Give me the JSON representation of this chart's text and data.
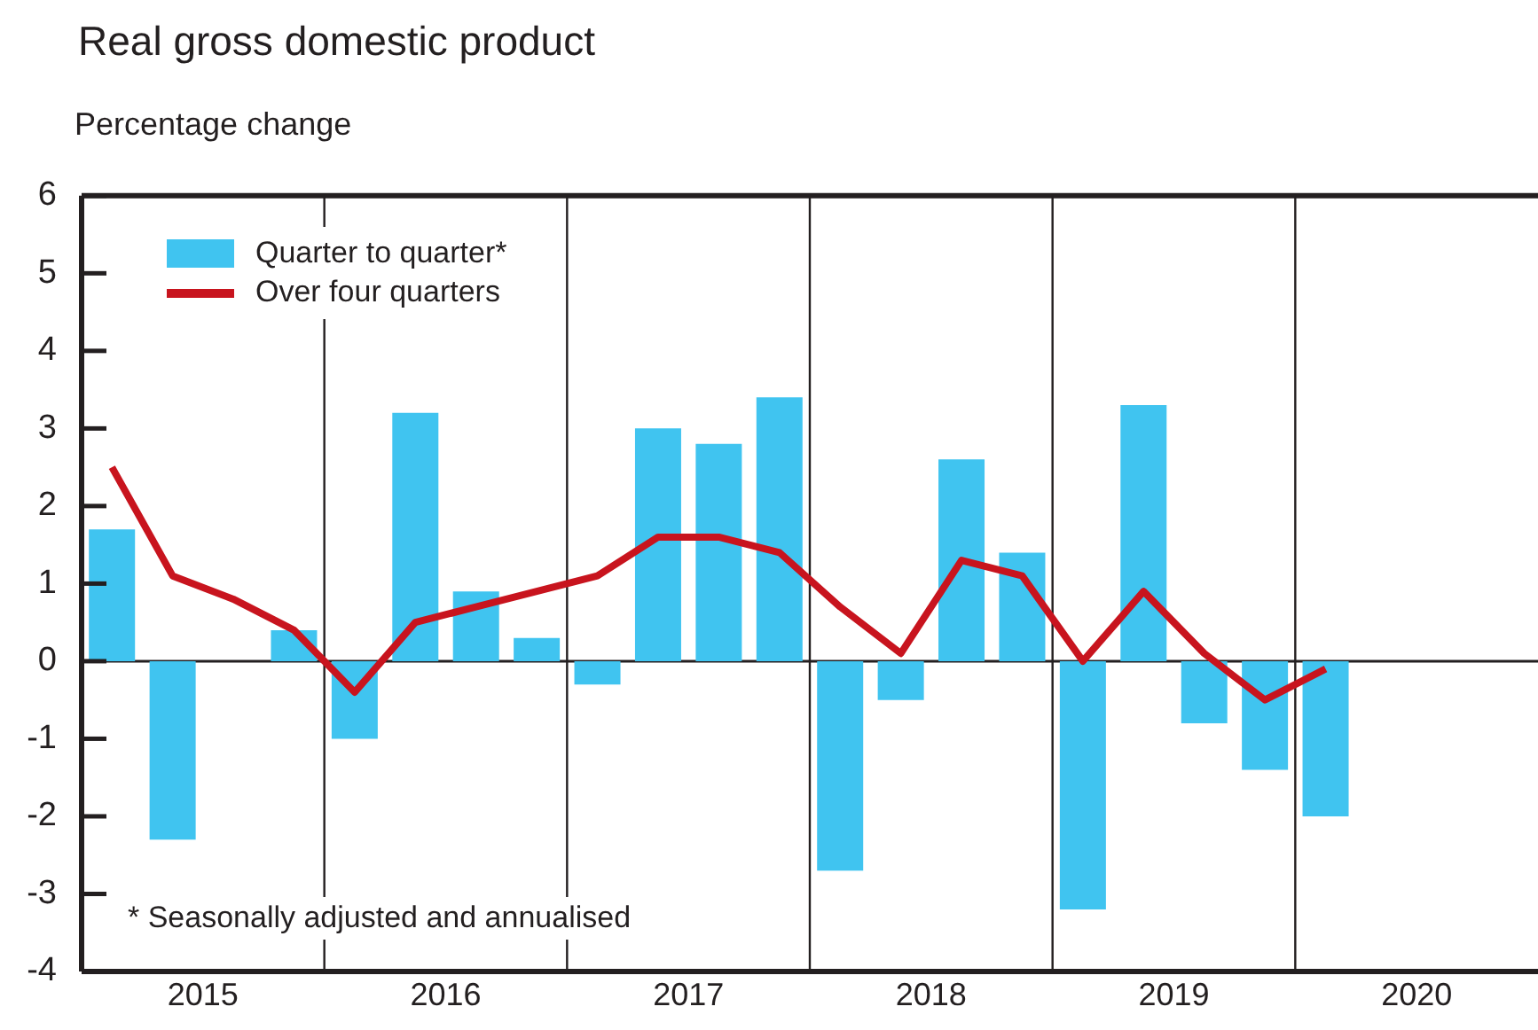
{
  "chart_data": {
    "type": "bar",
    "title": "Real gross domestic product",
    "ylabel": "Percentage change",
    "x": [
      2015.125,
      2015.375,
      2015.625,
      2015.875,
      2016.125,
      2016.375,
      2016.625,
      2016.875,
      2017.125,
      2017.375,
      2017.625,
      2017.875,
      2018.125,
      2018.375,
      2018.625,
      2018.875,
      2019.125,
      2019.375,
      2019.625,
      2019.875,
      2020.125
    ],
    "series": [
      {
        "name": "Quarter to quarter*",
        "color": "#40c4f0",
        "values": [
          1.7,
          -2.3,
          0,
          0.4,
          -1.0,
          3.2,
          0.9,
          0.3,
          -0.3,
          3.0,
          2.8,
          3.4,
          -2.7,
          -0.5,
          2.6,
          1.4,
          -3.2,
          3.3,
          -0.8,
          -1.4,
          -2.0
        ]
      },
      {
        "name": "Over four quarters",
        "type": "line",
        "color": "#c8141e",
        "values": [
          2.5,
          1.1,
          0.8,
          0.4,
          -0.4,
          0.5,
          0.7,
          0.9,
          1.1,
          1.6,
          1.6,
          1.4,
          0.7,
          0.1,
          1.3,
          1.1,
          0.0,
          0.9,
          0.1,
          -0.5,
          -0.1
        ]
      }
    ],
    "xlim": [
      2015,
      2021
    ],
    "xticks": [
      {
        "value": 2015.5,
        "label": "2015"
      },
      {
        "value": 2016.5,
        "label": "2016"
      },
      {
        "value": 2017.5,
        "label": "2017"
      },
      {
        "value": 2018.5,
        "label": "2018"
      },
      {
        "value": 2019.5,
        "label": "2019"
      },
      {
        "value": 2020.5,
        "label": "2020"
      }
    ],
    "ylim": [
      -4,
      6
    ],
    "yticks": [
      -4,
      -3,
      -2,
      -1,
      0,
      1,
      2,
      3,
      4,
      5,
      6
    ],
    "ref_lines": [
      {
        "axis": "y",
        "value": 0,
        "color": "#231f20"
      },
      {
        "axis": "x",
        "value": 2016,
        "color": "#231f20"
      },
      {
        "axis": "x",
        "value": 2017,
        "color": "#231f20"
      },
      {
        "axis": "x",
        "value": 2018,
        "color": "#231f20"
      },
      {
        "axis": "x",
        "value": 2019,
        "color": "#231f20"
      },
      {
        "axis": "x",
        "value": 2020,
        "color": "#231f20"
      }
    ],
    "annotations": [
      "* Seasonally adjusted and annualised"
    ],
    "grid": false,
    "legend": "top left",
    "line_style": "solid",
    "marker": "none"
  }
}
